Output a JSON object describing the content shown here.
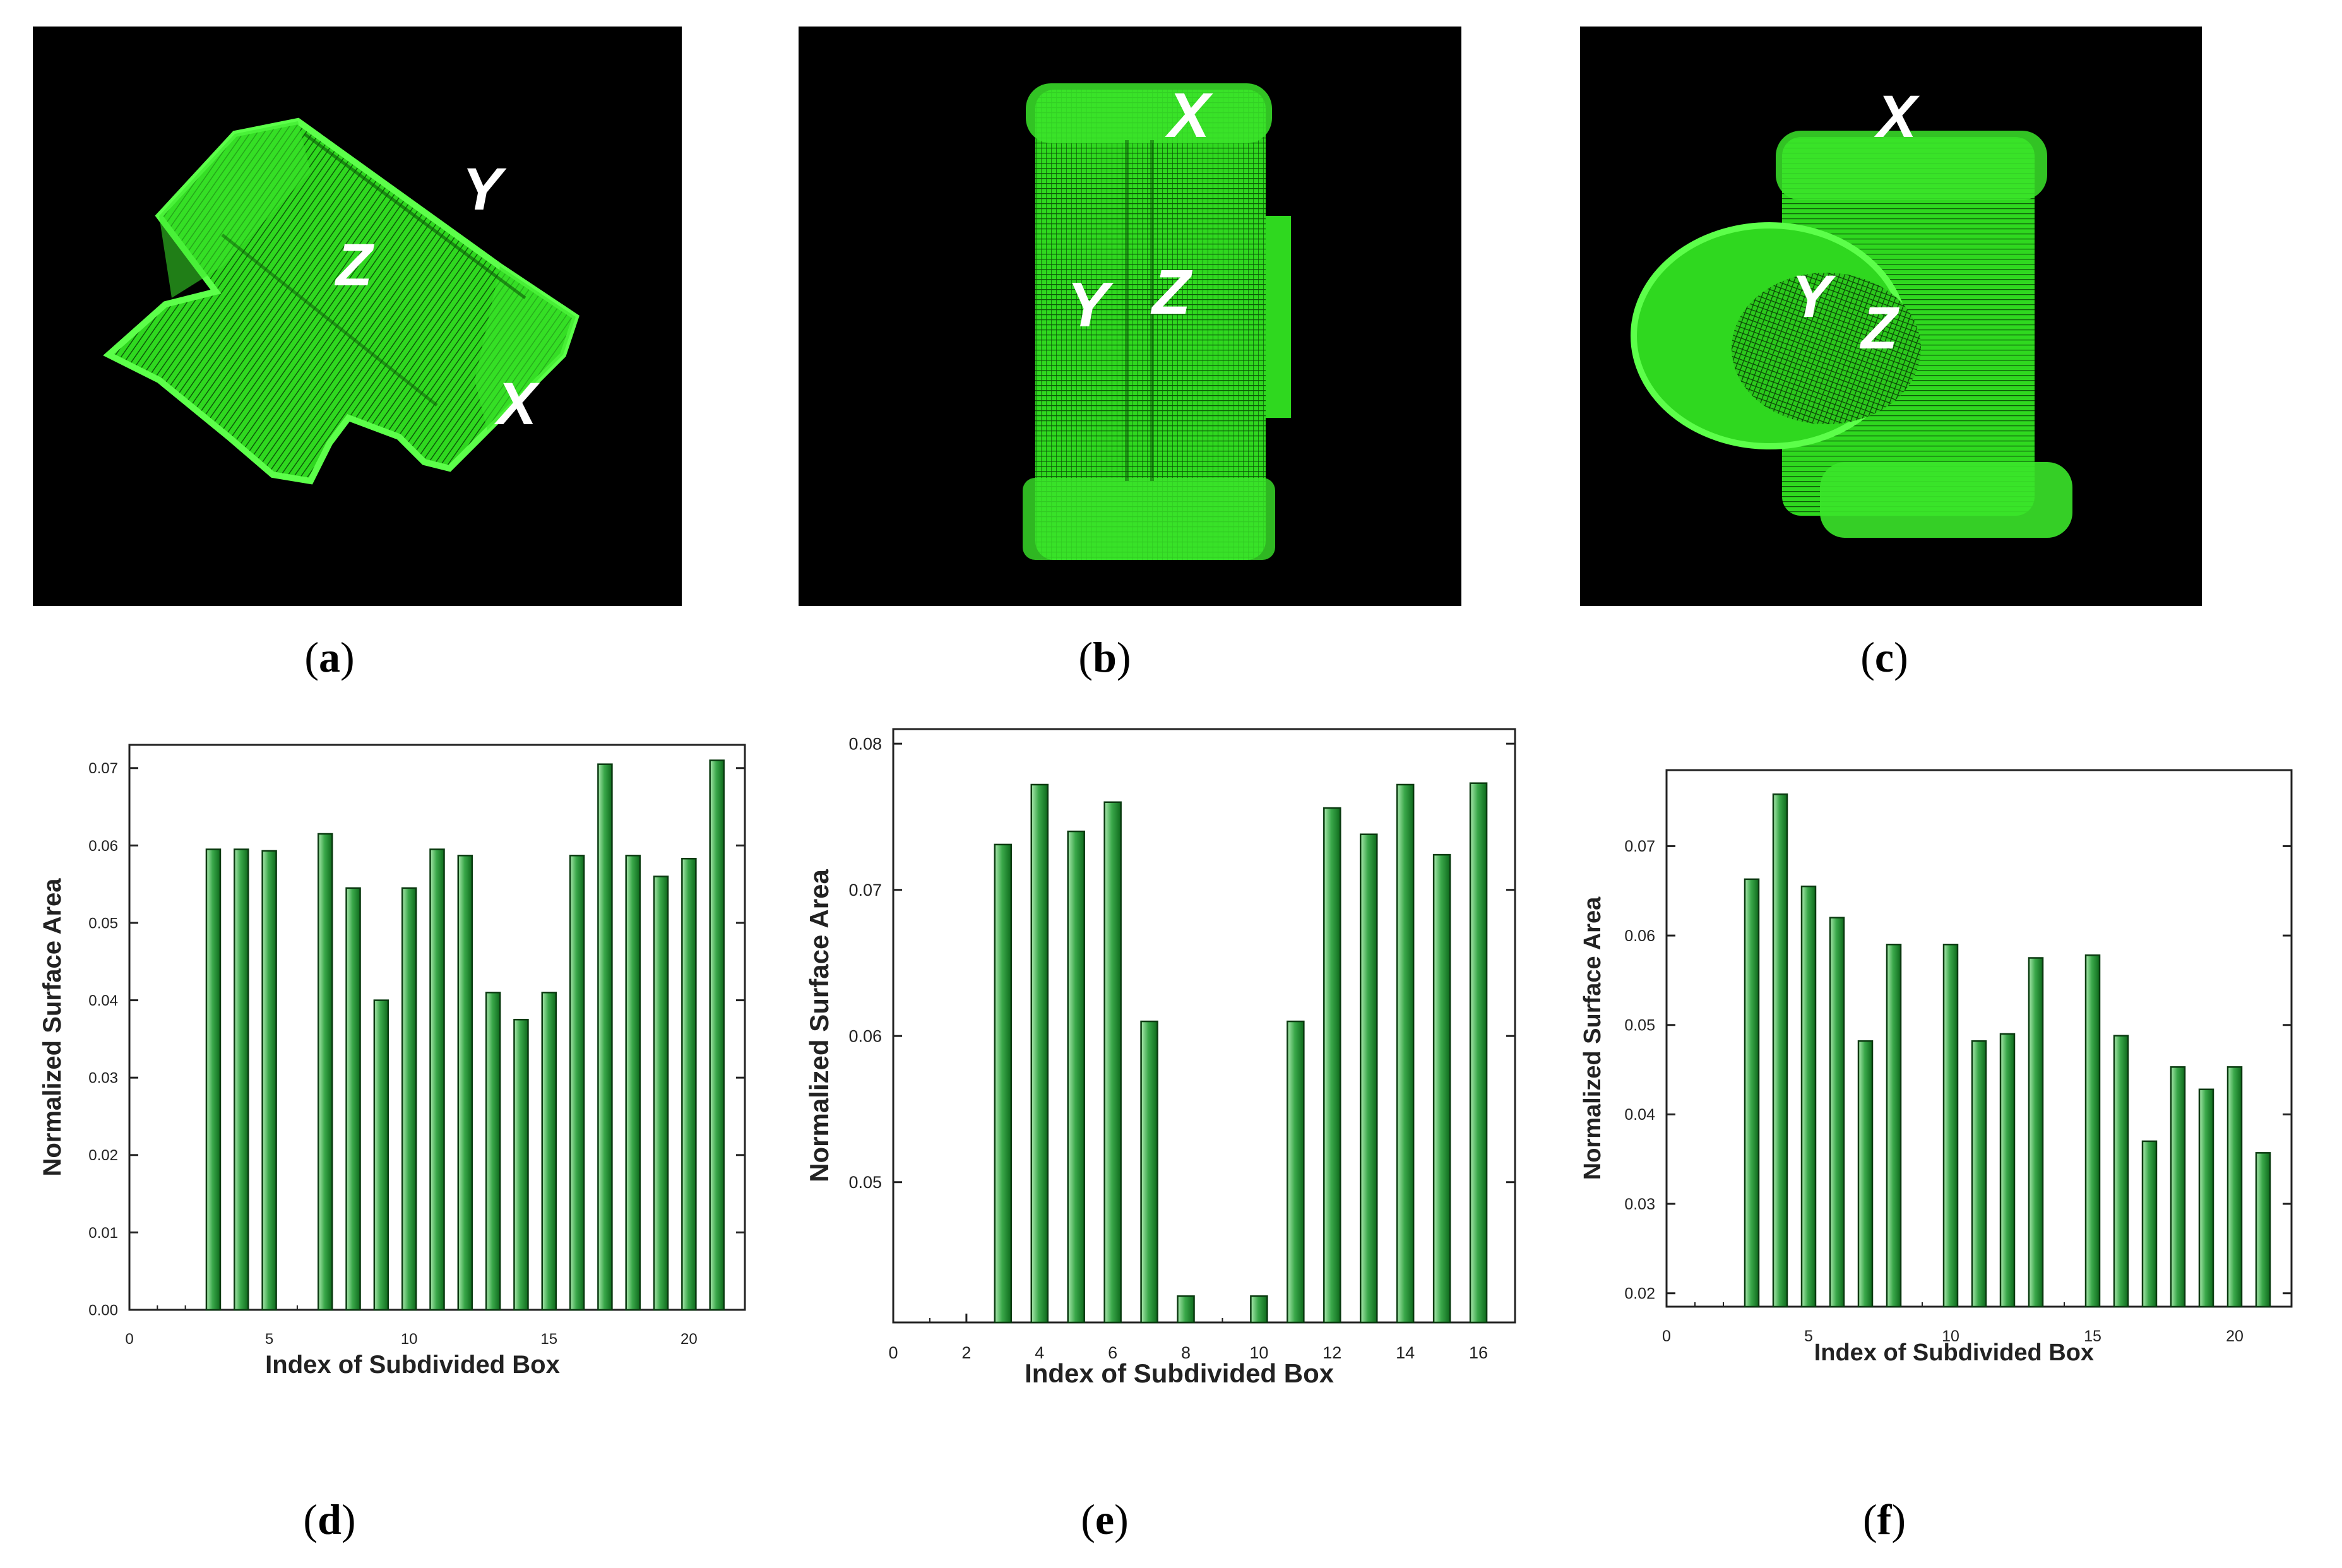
{
  "figure_panels": [
    {
      "id": "a",
      "caption": "a",
      "axis_labels": [
        "Y",
        "Z",
        "X"
      ]
    },
    {
      "id": "b",
      "caption": "b",
      "axis_labels": [
        "X",
        "Y",
        "Z"
      ]
    },
    {
      "id": "c",
      "caption": "c",
      "axis_labels": [
        "X",
        "Y",
        "Z"
      ]
    }
  ],
  "chart_panels": [
    {
      "id": "d",
      "caption": "d"
    },
    {
      "id": "e",
      "caption": "e"
    },
    {
      "id": "f",
      "caption": "f"
    }
  ],
  "colors": {
    "point_cloud": "#33ee22",
    "bar_fill": "#1f8f2f",
    "bar_highlight": "#a9e8ad",
    "axis": "#222222"
  },
  "chart_data": [
    {
      "type": "bar",
      "title": "",
      "xlabel": "Index of Subdivided Box",
      "ylabel": "Normalized Surface Area",
      "xlim": [
        0,
        22
      ],
      "ylim": [
        0,
        0.073
      ],
      "xticks": [
        0,
        5,
        10,
        15,
        20
      ],
      "yticks": [
        0.0,
        0.01,
        0.02,
        0.03,
        0.04,
        0.05,
        0.06,
        0.07
      ],
      "ytick_labels": [
        "0.00",
        "0.01",
        "0.02",
        "0.03",
        "0.04",
        "0.05",
        "0.06",
        "0.07"
      ],
      "x": [
        3,
        4,
        5,
        7,
        8,
        9,
        10,
        11,
        12,
        13,
        14,
        15,
        16,
        17,
        18,
        19,
        20,
        21
      ],
      "values": [
        0.0595,
        0.0595,
        0.0593,
        0.0615,
        0.0545,
        0.04,
        0.0545,
        0.0595,
        0.0587,
        0.041,
        0.0375,
        0.041,
        0.0587,
        0.0705,
        0.0587,
        0.056,
        0.0583,
        0.071
      ]
    },
    {
      "type": "bar",
      "title": "",
      "xlabel": "Index of Subdivided Box",
      "ylabel": "Normalized Surface Area",
      "xlim": [
        0,
        17
      ],
      "ylim": [
        0.0404,
        0.081
      ],
      "xticks": [
        0,
        2,
        4,
        6,
        8,
        10,
        12,
        14,
        16
      ],
      "yticks": [
        0.05,
        0.06,
        0.07,
        0.08
      ],
      "ytick_labels": [
        "0.05",
        "0.06",
        "0.07",
        "0.08"
      ],
      "x": [
        3,
        4,
        5,
        6,
        7,
        8,
        10,
        11,
        12,
        13,
        14,
        15,
        16
      ],
      "values": [
        0.0731,
        0.0772,
        0.074,
        0.076,
        0.061,
        0.0422,
        0.0422,
        0.061,
        0.0756,
        0.0738,
        0.0772,
        0.0724,
        0.0773
      ]
    },
    {
      "type": "bar",
      "title": "",
      "xlabel": "Index of Subdivided Box",
      "ylabel": "Normalized Surface Area",
      "xlim": [
        0,
        22
      ],
      "ylim": [
        0.0185,
        0.0785
      ],
      "xticks": [
        0,
        5,
        10,
        15,
        20
      ],
      "yticks": [
        0.02,
        0.03,
        0.04,
        0.05,
        0.06,
        0.07
      ],
      "ytick_labels": [
        "0.02",
        "0.03",
        "0.04",
        "0.05",
        "0.06",
        "0.07"
      ],
      "x": [
        3,
        4,
        5,
        6,
        7,
        8,
        10,
        11,
        12,
        13,
        15,
        16,
        17,
        18,
        19,
        20,
        21
      ],
      "values": [
        0.0663,
        0.0758,
        0.0655,
        0.062,
        0.0482,
        0.059,
        0.059,
        0.0482,
        0.049,
        0.0575,
        0.0578,
        0.0488,
        0.037,
        0.0453,
        0.0428,
        0.0453,
        0.0357
      ]
    }
  ]
}
